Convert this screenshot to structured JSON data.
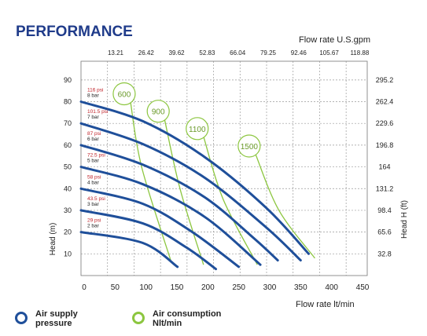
{
  "chart_data": {
    "type": "line",
    "title": "PERFORMANCE",
    "top_axis_label": "Flow rate U.S.gpm",
    "top_ticks": [
      "13.21",
      "26.42",
      "39.62",
      "52.83",
      "66.04",
      "79.25",
      "92.46",
      "105.67",
      "118.88"
    ],
    "xlabel": "Flow rate  lt/min",
    "ylabel": "Head (m)",
    "right_ylabel": "Head H (ft)",
    "xlim": [
      0,
      450
    ],
    "ylim": [
      0,
      95
    ],
    "x_ticks": [
      0,
      50,
      100,
      150,
      200,
      250,
      300,
      350,
      400,
      450
    ],
    "y_ticks": [
      10,
      20,
      30,
      40,
      50,
      60,
      70,
      80,
      90
    ],
    "right_ticks": [
      {
        "y": 10,
        "label": "32.8"
      },
      {
        "y": 20,
        "label": "65.6"
      },
      {
        "y": 30,
        "label": "98.4"
      },
      {
        "y": 40,
        "label": "131.2"
      },
      {
        "y": 50,
        "label": "164"
      },
      {
        "y": 60,
        "label": "196.8"
      },
      {
        "y": 70,
        "label": "229.6"
      },
      {
        "y": 80,
        "label": "262.4"
      },
      {
        "y": 90,
        "label": "295.2"
      }
    ],
    "grid": true,
    "series": [
      {
        "psi": "116 psi",
        "bar": "8 bar",
        "points": [
          [
            0,
            80
          ],
          [
            100,
            71
          ],
          [
            200,
            54.5
          ],
          [
            300,
            31
          ],
          [
            368,
            10
          ]
        ]
      },
      {
        "psi": "101.5 psi",
        "bar": "7 bar",
        "points": [
          [
            0,
            70
          ],
          [
            100,
            60.5
          ],
          [
            200,
            45
          ],
          [
            300,
            22
          ],
          [
            355,
            7
          ]
        ]
      },
      {
        "psi": "87 psi",
        "bar": "6 bar",
        "points": [
          [
            0,
            60
          ],
          [
            100,
            51
          ],
          [
            200,
            36
          ],
          [
            280,
            17
          ],
          [
            318,
            7
          ]
        ]
      },
      {
        "psi": "72.5 psi",
        "bar": "5 bar",
        "points": [
          [
            0,
            50
          ],
          [
            100,
            42
          ],
          [
            200,
            27
          ],
          [
            290,
            5
          ]
        ]
      },
      {
        "psi": "58 psi",
        "bar": "4 bar",
        "points": [
          [
            0,
            40
          ],
          [
            100,
            33
          ],
          [
            180,
            20
          ],
          [
            255,
            4
          ]
        ]
      },
      {
        "psi": "43.5 psi",
        "bar": "3 bar",
        "points": [
          [
            0,
            30
          ],
          [
            100,
            24
          ],
          [
            170,
            13
          ],
          [
            218,
            3
          ]
        ]
      },
      {
        "psi": "29 psi",
        "bar": "2 bar",
        "points": [
          [
            0,
            20
          ],
          [
            100,
            15
          ],
          [
            156,
            4
          ]
        ]
      }
    ],
    "air_consumption": [
      {
        "label": "600",
        "points": [
          [
            80,
            80
          ],
          [
            98,
            50
          ],
          [
            145,
            7
          ]
        ]
      },
      {
        "label": "900",
        "points": [
          [
            135,
            72
          ],
          [
            160,
            40
          ],
          [
            198,
            5
          ]
        ]
      },
      {
        "label": "1100",
        "points": [
          [
            198,
            64
          ],
          [
            230,
            35
          ],
          [
            285,
            5
          ]
        ]
      },
      {
        "label": "1500",
        "points": [
          [
            282,
            56
          ],
          [
            320,
            30
          ],
          [
            378,
            8
          ]
        ]
      }
    ],
    "legend": {
      "air_supply": "Air supply pressure",
      "air_consumption": "Air consumption Nlt/min"
    }
  },
  "colors": {
    "title": "#1f3b8a",
    "pressure": "#1f4f9a",
    "consumption": "#8cc63f",
    "psi_label": "#c0242b",
    "grid": "#9a9a9a",
    "text": "#222222"
  }
}
